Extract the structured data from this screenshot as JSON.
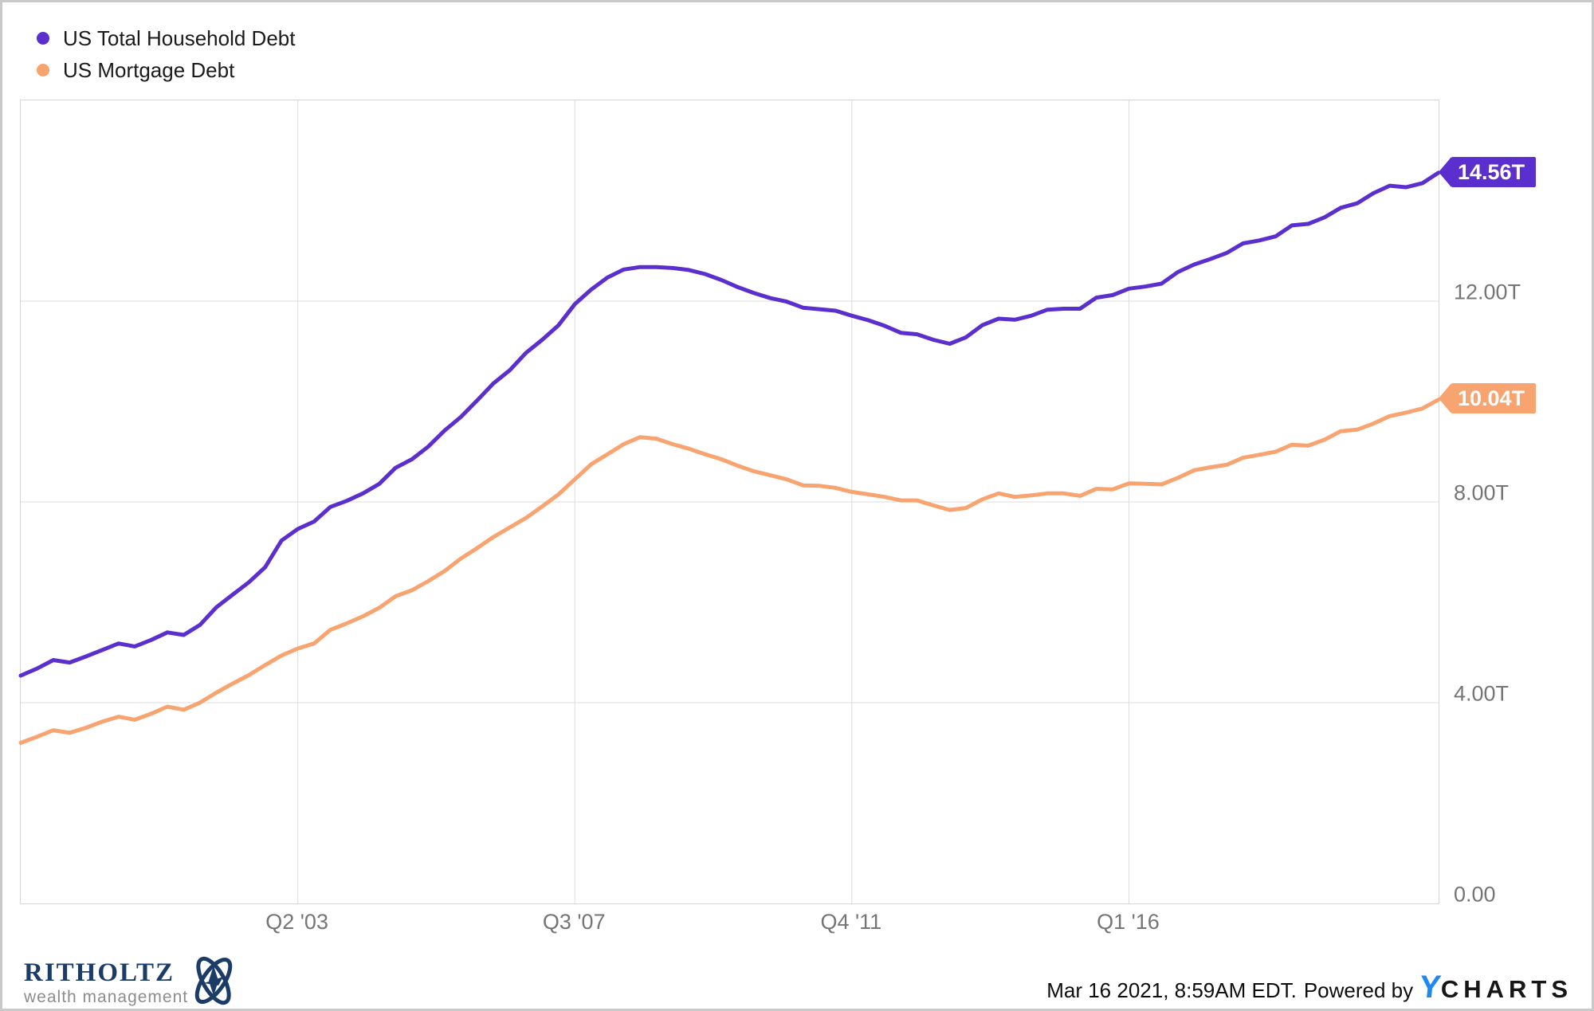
{
  "chart_data": {
    "type": "line",
    "frequency": "quarterly",
    "x_range": [
      "1999 Q1",
      "2020 Q4"
    ],
    "ylim": [
      0,
      16
    ],
    "y_unit": "trillions USD",
    "grid": true,
    "legend_position": "top-left",
    "x_ticks": [
      {
        "label": "Q2 '03",
        "quarter_index": 17
      },
      {
        "label": "Q3 '07",
        "quarter_index": 34
      },
      {
        "label": "Q4 '11",
        "quarter_index": 51
      },
      {
        "label": "Q1 '16",
        "quarter_index": 68
      }
    ],
    "y_ticks": [
      {
        "label": "0.00",
        "value": 0
      },
      {
        "label": "4.00T",
        "value": 4
      },
      {
        "label": "8.00T",
        "value": 8
      },
      {
        "label": "12.00T",
        "value": 12
      }
    ],
    "series": [
      {
        "name": "US Total Household Debt",
        "color": "#5b2fce",
        "end_label": "14.56T",
        "end_value": 14.56,
        "values": [
          4.54,
          4.68,
          4.85,
          4.8,
          4.92,
          5.05,
          5.18,
          5.12,
          5.25,
          5.4,
          5.35,
          5.55,
          5.9,
          6.15,
          6.4,
          6.7,
          7.23,
          7.46,
          7.61,
          7.9,
          8.02,
          8.17,
          8.36,
          8.68,
          8.85,
          9.1,
          9.42,
          9.69,
          10.02,
          10.36,
          10.62,
          10.97,
          11.23,
          11.52,
          11.94,
          12.23,
          12.47,
          12.63,
          12.68,
          12.68,
          12.66,
          12.62,
          12.54,
          12.42,
          12.28,
          12.16,
          12.06,
          11.99,
          11.87,
          11.84,
          11.81,
          11.71,
          11.62,
          11.51,
          11.37,
          11.34,
          11.23,
          11.15,
          11.28,
          11.52,
          11.65,
          11.63,
          11.71,
          11.83,
          11.85,
          11.85,
          12.07,
          12.12,
          12.25,
          12.29,
          12.35,
          12.58,
          12.73,
          12.84,
          12.96,
          13.15,
          13.21,
          13.29,
          13.51,
          13.54,
          13.67,
          13.86,
          13.95,
          14.15,
          14.3,
          14.27,
          14.35,
          14.56
        ]
      },
      {
        "name": "US Mortgage Debt",
        "color": "#f8a470",
        "end_label": "10.04T",
        "end_value": 10.04,
        "values": [
          3.2,
          3.32,
          3.45,
          3.4,
          3.5,
          3.62,
          3.72,
          3.66,
          3.78,
          3.92,
          3.86,
          4.0,
          4.2,
          4.38,
          4.55,
          4.75,
          4.94,
          5.08,
          5.18,
          5.45,
          5.58,
          5.72,
          5.89,
          6.12,
          6.24,
          6.42,
          6.62,
          6.87,
          7.08,
          7.3,
          7.49,
          7.68,
          7.91,
          8.15,
          8.45,
          8.75,
          8.95,
          9.15,
          9.29,
          9.26,
          9.15,
          9.06,
          8.95,
          8.85,
          8.72,
          8.61,
          8.53,
          8.45,
          8.33,
          8.32,
          8.28,
          8.2,
          8.15,
          8.1,
          8.03,
          8.03,
          7.93,
          7.84,
          7.88,
          8.05,
          8.17,
          8.1,
          8.13,
          8.17,
          8.17,
          8.12,
          8.26,
          8.25,
          8.37,
          8.36,
          8.35,
          8.48,
          8.63,
          8.69,
          8.74,
          8.88,
          8.94,
          9.0,
          9.14,
          9.12,
          9.24,
          9.41,
          9.44,
          9.56,
          9.71,
          9.78,
          9.86,
          10.04
        ]
      }
    ]
  },
  "footer": {
    "timestamp": "Mar 16 2021, 8:59AM EDT.",
    "powered_by": "Powered by",
    "ycharts_logo": {
      "y": "Y",
      "charts": "CHARTS",
      "y_color": "#1e88f5"
    }
  },
  "branding": {
    "name": "RITHOLTZ",
    "subtitle": "wealth management"
  }
}
